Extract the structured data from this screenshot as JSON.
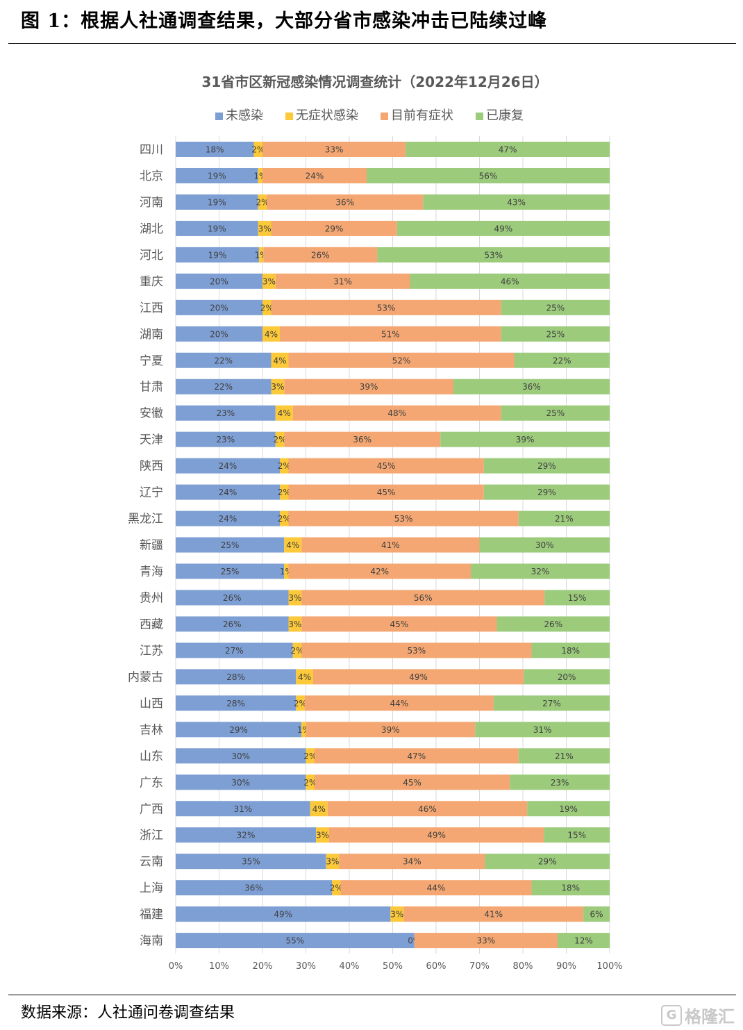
{
  "figure": {
    "title": "图 1：根据人社通调查结果，大部分省市感染冲击已陆续过峰",
    "source": "数据来源：人社通问卷调查结果",
    "watermark": "格隆汇"
  },
  "chart_data": {
    "type": "bar",
    "orientation": "horizontal",
    "stacked": "percent",
    "title": "31省市区新冠感染情况调查统计（2022年12月26日）",
    "legend_position": "top",
    "grid": true,
    "xlim": [
      0,
      100
    ],
    "x_ticks": [
      "0%",
      "10%",
      "20%",
      "30%",
      "40%",
      "50%",
      "60%",
      "70%",
      "80%",
      "90%",
      "100%"
    ],
    "categories": [
      "四川",
      "北京",
      "河南",
      "湖北",
      "河北",
      "重庆",
      "江西",
      "湖南",
      "宁夏",
      "甘肃",
      "安徽",
      "天津",
      "陕西",
      "辽宁",
      "黑龙江",
      "新疆",
      "青海",
      "贵州",
      "西藏",
      "江苏",
      "内蒙古",
      "山西",
      "吉林",
      "山东",
      "广东",
      "广西",
      "浙江",
      "云南",
      "上海",
      "福建",
      "海南"
    ],
    "series": [
      {
        "name": "未感染",
        "color": "#7e9fd4",
        "values": [
          18,
          19,
          19,
          19,
          19,
          20,
          20,
          20,
          22,
          22,
          23,
          23,
          24,
          24,
          24,
          25,
          25,
          26,
          26,
          27,
          28,
          28,
          29,
          30,
          30,
          31,
          32,
          35,
          36,
          49,
          55
        ]
      },
      {
        "name": "无症状感染",
        "color": "#fcc93a",
        "values": [
          2,
          1,
          2,
          3,
          1,
          3,
          2,
          4,
          4,
          3,
          4,
          2,
          2,
          2,
          2,
          4,
          1,
          3,
          3,
          2,
          4,
          2,
          1,
          2,
          2,
          4,
          3,
          3,
          2,
          3,
          0
        ]
      },
      {
        "name": "目前有症状",
        "color": "#f4a772",
        "values": [
          33,
          24,
          36,
          29,
          26,
          31,
          53,
          51,
          52,
          39,
          48,
          36,
          45,
          45,
          53,
          41,
          42,
          56,
          45,
          53,
          49,
          44,
          39,
          47,
          45,
          46,
          49,
          34,
          44,
          41,
          33
        ]
      },
      {
        "name": "已康复",
        "color": "#9ccb7c",
        "values": [
          47,
          56,
          43,
          49,
          53,
          46,
          25,
          25,
          22,
          36,
          25,
          39,
          29,
          29,
          21,
          30,
          32,
          15,
          26,
          18,
          20,
          27,
          31,
          21,
          23,
          19,
          15,
          29,
          18,
          6,
          12
        ]
      }
    ]
  }
}
